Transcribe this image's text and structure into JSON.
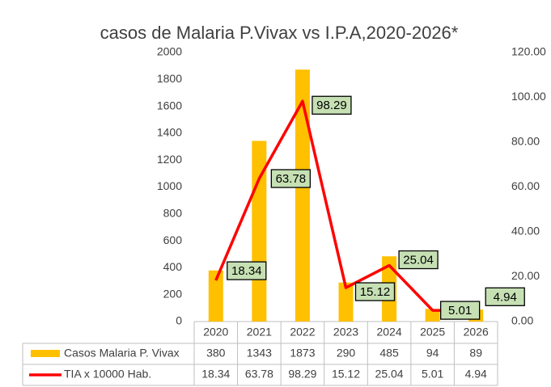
{
  "chart_data": {
    "type": "bar_line_table",
    "title": "casos de Malaria P.Vivax vs I.P.A,2020-2026*",
    "categories": [
      "2020",
      "2021",
      "2022",
      "2023",
      "2024",
      "2025",
      "2026"
    ],
    "series": [
      {
        "name": "Casos Malaria P. Vivax",
        "color": "#ffc000",
        "type": "bar",
        "values": [
          380,
          1343,
          1873,
          290,
          485,
          94,
          89
        ]
      },
      {
        "name": "TIA x 10000 Hab.",
        "color": "#ff0000",
        "type": "line",
        "axis": "y2",
        "values": [
          18.34,
          63.78,
          98.29,
          15.12,
          25.04,
          5.01,
          4.94
        ]
      }
    ],
    "ylim": [
      0,
      2000
    ],
    "yticks": [
      0,
      200,
      400,
      600,
      800,
      1000,
      1200,
      1400,
      1600,
      1800,
      2000
    ],
    "y2lim": [
      0,
      120
    ],
    "y2ticks": [
      {
        "value": 0,
        "label": "0.00"
      },
      {
        "value": 20,
        "label": "20.00"
      },
      {
        "value": 40,
        "label": "40.00"
      },
      {
        "value": 60,
        "label": "60.00"
      },
      {
        "value": 80,
        "label": "80.00"
      },
      {
        "value": 100,
        "label": "100.00"
      },
      {
        "value": 120,
        "label": "120.00"
      }
    ],
    "grid": false
  }
}
